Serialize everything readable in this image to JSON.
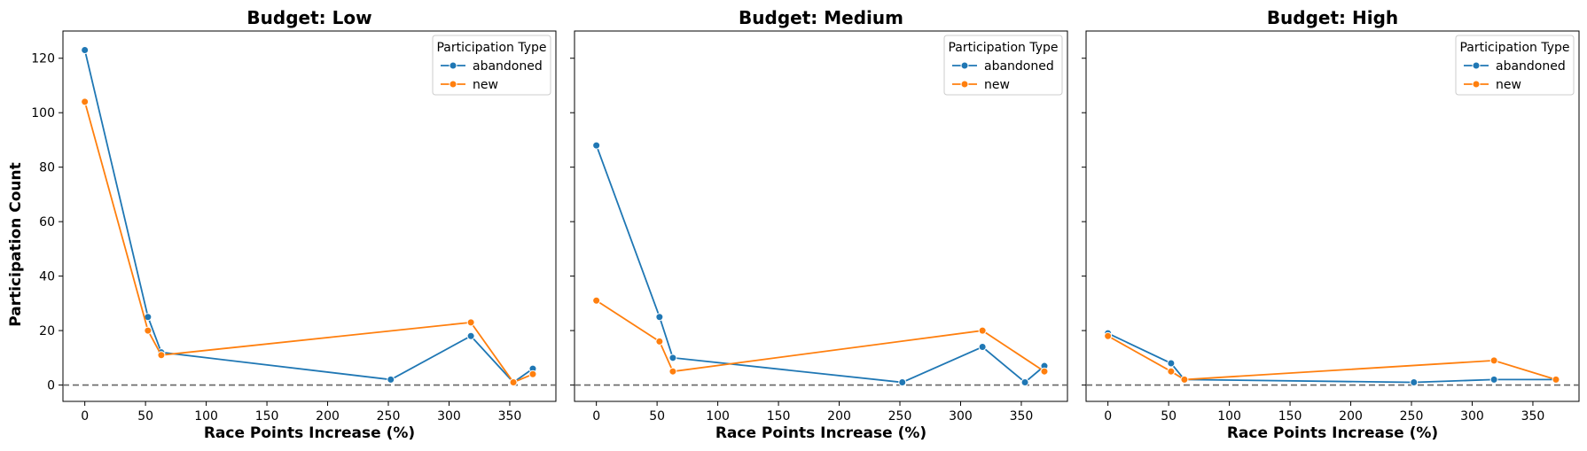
{
  "figure": {
    "ylabel": "Participation Count"
  },
  "chart_data": [
    {
      "type": "line",
      "title": "Budget: Low",
      "xlabel": "Race Points Increase (%)",
      "ylabel": "Participation Count",
      "xlim": [
        -18,
        388
      ],
      "ylim": [
        -6,
        130
      ],
      "xticks": [
        0,
        50,
        100,
        150,
        200,
        250,
        300,
        350
      ],
      "yticks": [
        0,
        20,
        40,
        60,
        80,
        100,
        120
      ],
      "reference_line": {
        "y": 0,
        "style": "dashed",
        "color": "#666666"
      },
      "legend": {
        "title": "Participation Type",
        "position": "top-right"
      },
      "series": [
        {
          "name": "abandoned",
          "color": "#1f77b4",
          "x": [
            0,
            52,
            63,
            252,
            318,
            353,
            369
          ],
          "y": [
            123,
            25,
            12,
            2,
            18,
            1,
            6
          ]
        },
        {
          "name": "new",
          "color": "#ff7f0e",
          "x": [
            0,
            52,
            63,
            318,
            353,
            369
          ],
          "y": [
            104,
            20,
            11,
            23,
            1,
            4
          ]
        }
      ]
    },
    {
      "type": "line",
      "title": "Budget: Medium",
      "xlabel": "Race Points Increase (%)",
      "ylabel": "",
      "xlim": [
        -18,
        388
      ],
      "ylim": [
        -6,
        130
      ],
      "xticks": [
        0,
        50,
        100,
        150,
        200,
        250,
        300,
        350
      ],
      "yticks": [
        0,
        20,
        40,
        60,
        80,
        100,
        120
      ],
      "reference_line": {
        "y": 0,
        "style": "dashed",
        "color": "#666666"
      },
      "legend": {
        "title": "Participation Type",
        "position": "top-right"
      },
      "series": [
        {
          "name": "abandoned",
          "color": "#1f77b4",
          "x": [
            0,
            52,
            63,
            252,
            318,
            353,
            369
          ],
          "y": [
            88,
            25,
            10,
            1,
            14,
            1,
            7
          ]
        },
        {
          "name": "new",
          "color": "#ff7f0e",
          "x": [
            0,
            52,
            63,
            318,
            369
          ],
          "y": [
            31,
            16,
            5,
            20,
            5
          ]
        }
      ]
    },
    {
      "type": "line",
      "title": "Budget: High",
      "xlabel": "Race Points Increase (%)",
      "ylabel": "",
      "xlim": [
        -18,
        388
      ],
      "ylim": [
        -6,
        130
      ],
      "xticks": [
        0,
        50,
        100,
        150,
        200,
        250,
        300,
        350
      ],
      "yticks": [
        0,
        20,
        40,
        60,
        80,
        100,
        120
      ],
      "reference_line": {
        "y": 0,
        "style": "dashed",
        "color": "#666666"
      },
      "legend": {
        "title": "Participation Type",
        "position": "top-right"
      },
      "series": [
        {
          "name": "abandoned",
          "color": "#1f77b4",
          "x": [
            0,
            52,
            63,
            252,
            318,
            369
          ],
          "y": [
            19,
            8,
            2,
            1,
            2,
            2
          ]
        },
        {
          "name": "new",
          "color": "#ff7f0e",
          "x": [
            0,
            52,
            63,
            318,
            369
          ],
          "y": [
            18,
            5,
            2,
            9,
            2
          ]
        }
      ]
    }
  ]
}
